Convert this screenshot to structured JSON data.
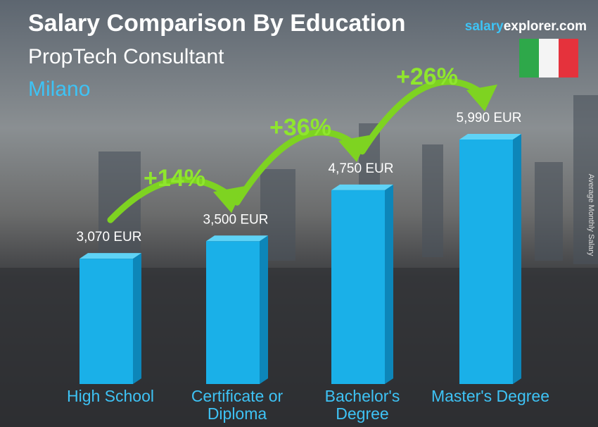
{
  "chart_data": {
    "type": "bar",
    "title": "Salary Comparison By Education",
    "subtitle": "PropTech Consultant",
    "location": "Milano",
    "brand": [
      "salary",
      "explorer.com"
    ],
    "y_label": "Average Monthly Salary",
    "categories": [
      "High School",
      "Certificate or Diploma",
      "Bachelor's Degree",
      "Master's Degree"
    ],
    "values": [
      3070,
      3500,
      4750,
      5990
    ],
    "value_labels": [
      "3,070 EUR",
      "3,500 EUR",
      "4,750 EUR",
      "5,990 EUR"
    ],
    "color": "#1ab0e8",
    "changes": [
      "+14%",
      "+36%",
      "+26%"
    ]
  }
}
